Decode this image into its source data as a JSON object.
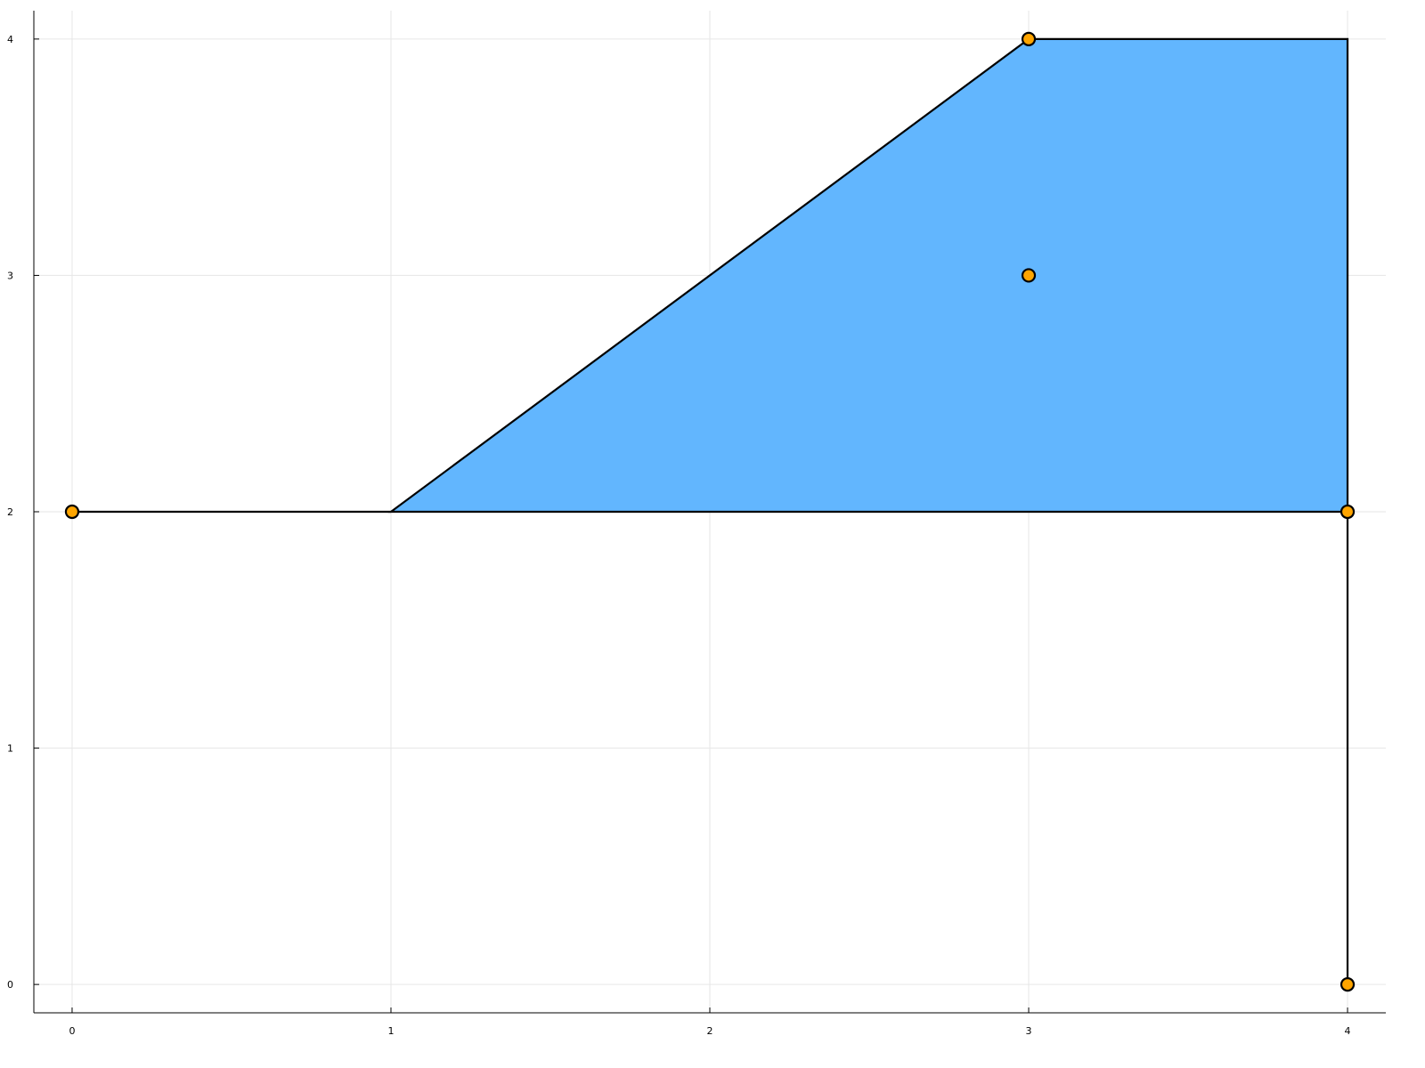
{
  "chart_data": {
    "type": "scatter",
    "title": "",
    "xlabel": "",
    "ylabel": "",
    "xlim": [
      -0.12,
      4.12
    ],
    "ylim": [
      -0.12,
      4.12
    ],
    "grid": true,
    "legend": "none",
    "x_ticks": [
      0,
      1,
      2,
      3,
      4
    ],
    "y_ticks": [
      0,
      1,
      2,
      3,
      4
    ],
    "x_tick_labels": [
      "0",
      "1",
      "2",
      "3",
      "4"
    ],
    "y_tick_labels": [
      "0",
      "1",
      "2",
      "3",
      "4"
    ],
    "filled_region": {
      "vertices": [
        [
          1,
          2
        ],
        [
          3,
          4
        ],
        [
          4,
          4
        ],
        [
          4,
          2
        ]
      ],
      "fill_color": "#62b6fe",
      "edge_color": "#000000"
    },
    "line_segments": [
      {
        "from": [
          0,
          2
        ],
        "to": [
          1,
          2
        ]
      },
      {
        "from": [
          4,
          2
        ],
        "to": [
          4,
          0
        ]
      }
    ],
    "points": {
      "x": [
        0,
        3,
        3,
        4,
        4
      ],
      "y": [
        2,
        4,
        3,
        2,
        0
      ],
      "color": "#ffa500",
      "edge_color": "#000000"
    }
  }
}
